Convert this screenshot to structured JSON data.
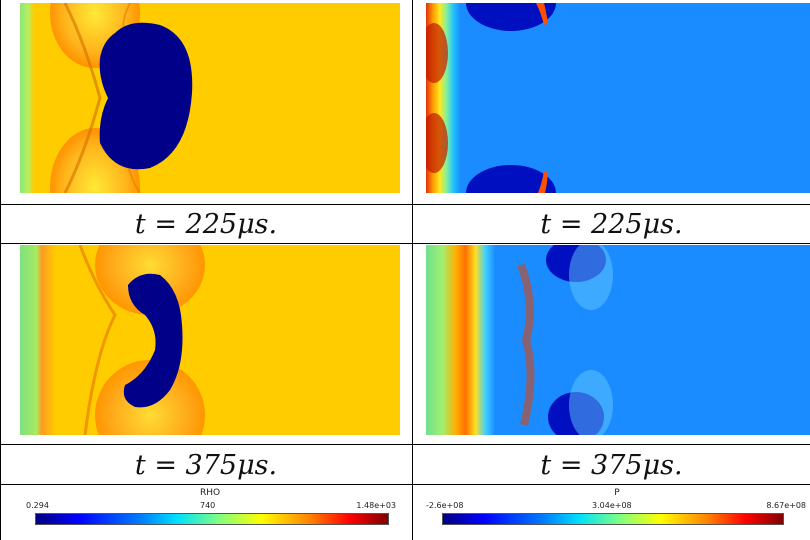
{
  "panels": {
    "rho_225": {
      "caption": "t = 225μs."
    },
    "p_225": {
      "caption": "t = 225μs."
    },
    "rho_375": {
      "caption": "t = 375μs."
    },
    "p_375": {
      "caption": "t = 375μs."
    }
  },
  "colorbars": {
    "rho": {
      "title": "RHO",
      "min": "0.294",
      "mid": "740",
      "max": "1.48e+03"
    },
    "p": {
      "title": "P",
      "min": "-2.6e+08",
      "mid": "3.04e+08",
      "max": "8.67e+08"
    }
  },
  "colors": {
    "yellow": "#ffcc00",
    "dark_blue": "#000088",
    "light_blue": "#1a8cff",
    "green": "#88e080",
    "orange": "#ff9900",
    "red": "#e83000"
  }
}
